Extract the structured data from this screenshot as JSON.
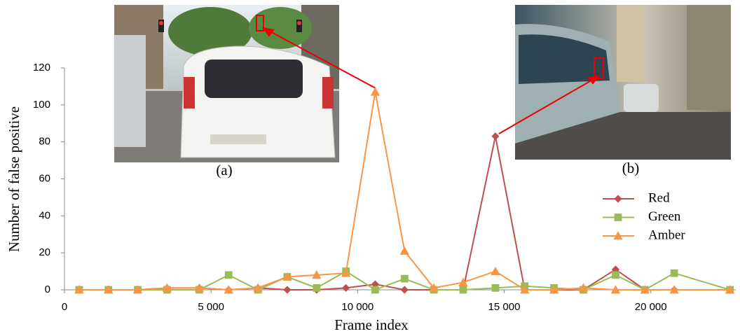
{
  "chart_data": {
    "type": "line",
    "x_label": "Frame index",
    "y_label": "Number of false positive",
    "x": [
      500,
      1500,
      2500,
      3500,
      4600,
      5600,
      6600,
      7600,
      8600,
      9600,
      10600,
      11600,
      12600,
      13600,
      14700,
      15700,
      16700,
      17700,
      18800,
      19800,
      20800,
      22700
    ],
    "series": [
      {
        "name": "Red",
        "color": "#c0504d",
        "marker": "diamond",
        "values": [
          0,
          0,
          0,
          1,
          1,
          0,
          1,
          0,
          0,
          1,
          3,
          0,
          0,
          0,
          83,
          0,
          0,
          0,
          11,
          0,
          0,
          0
        ]
      },
      {
        "name": "Green",
        "color": "#9bbb59",
        "marker": "square",
        "values": [
          0,
          0,
          0,
          0,
          0,
          8,
          0,
          7,
          1,
          10,
          0,
          6,
          0,
          0,
          1,
          2,
          1,
          0,
          8,
          0,
          9,
          0
        ]
      },
      {
        "name": "Amber",
        "color": "#f79646",
        "marker": "triangle",
        "values": [
          0,
          0,
          0,
          1,
          1,
          0,
          1,
          7,
          8,
          9,
          107,
          21,
          1,
          4,
          10,
          0,
          0,
          1,
          0,
          0,
          0,
          0
        ]
      }
    ],
    "xlim": [
      0,
      22900
    ],
    "ylim": [
      0,
      120
    ],
    "xticks": [
      0,
      {
        "value": 5000,
        "label": "5 000"
      },
      {
        "value": 10000,
        "label": "10 000"
      },
      {
        "value": 15000,
        "label": "15 000"
      },
      {
        "value": 20000,
        "label": "20 000"
      }
    ],
    "yticks": [
      0,
      20,
      40,
      60,
      80,
      100,
      120
    ],
    "annotations": [
      {
        "text": "(a)"
      },
      {
        "text": "(b)"
      }
    ],
    "legend": "right"
  }
}
